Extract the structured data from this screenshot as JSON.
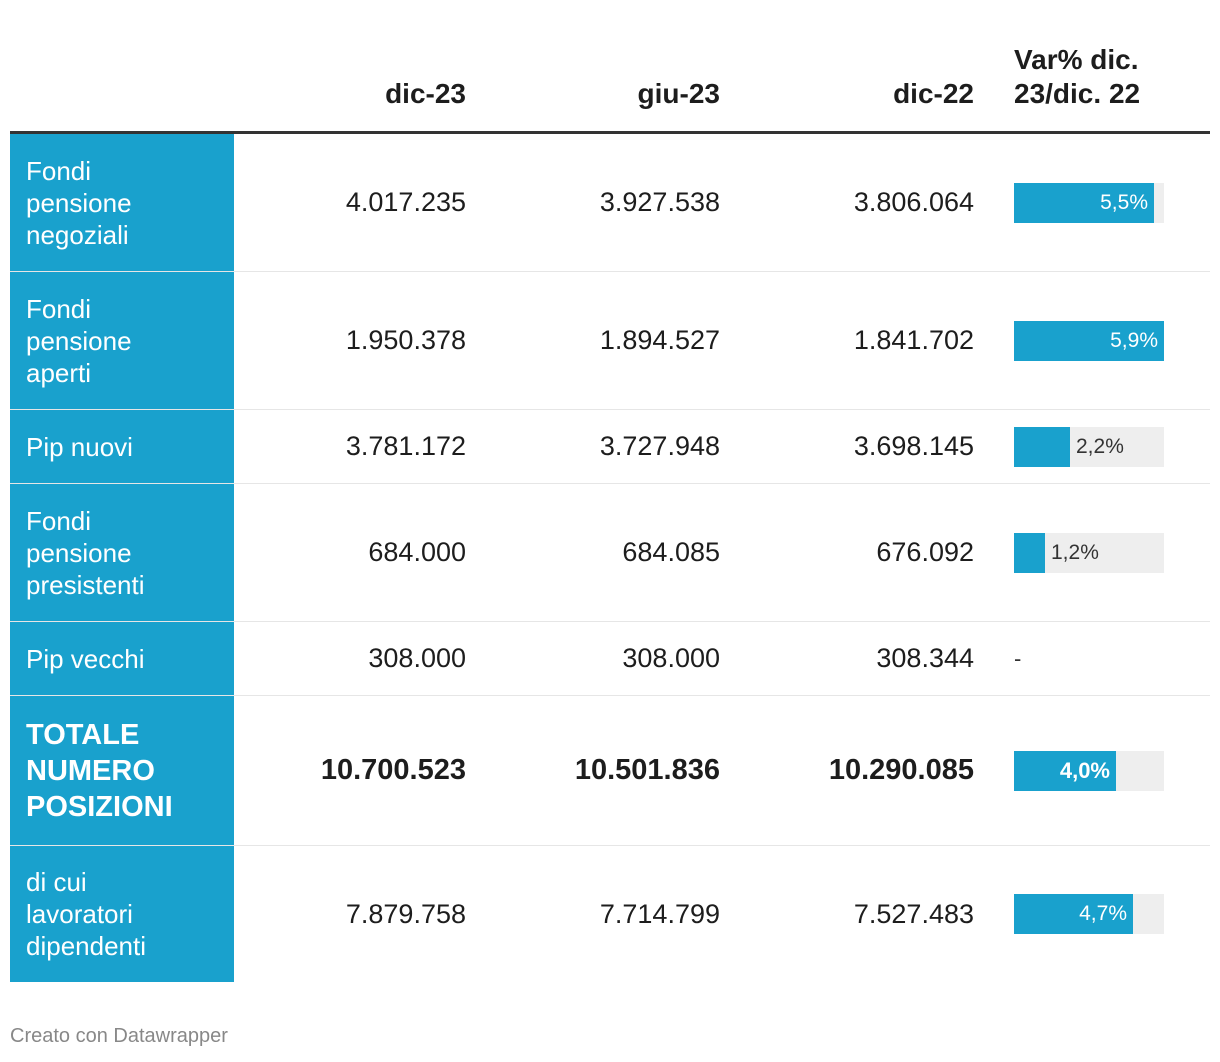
{
  "chart_data": {
    "type": "table",
    "columns": [
      "",
      "dic-23",
      "giu-23",
      "dic-22",
      "Var% dic. 23/dic. 22"
    ],
    "header_var_lines": [
      "Var% dic.",
      "23/dic. 22"
    ],
    "bar_max_percent": 5.9,
    "rows": [
      {
        "label": "Fondi pensione negoziali",
        "label_lines": [
          "Fondi",
          "pensione",
          "negoziali"
        ],
        "dic23": "4.017.235",
        "giu23": "3.927.538",
        "dic22": "3.806.064",
        "var_value": 5.5,
        "var_text": "5,5%",
        "bold": false
      },
      {
        "label": "Fondi pensione aperti",
        "label_lines": [
          "Fondi",
          "pensione",
          "aperti"
        ],
        "dic23": "1.950.378",
        "giu23": "1.894.527",
        "dic22": "1.841.702",
        "var_value": 5.9,
        "var_text": "5,9%",
        "bold": false
      },
      {
        "label": "Pip nuovi",
        "label_lines": [
          "Pip nuovi"
        ],
        "dic23": "3.781.172",
        "giu23": "3.727.948",
        "dic22": "3.698.145",
        "var_value": 2.2,
        "var_text": "2,2%",
        "bold": false
      },
      {
        "label": "Fondi pensione presistenti",
        "label_lines": [
          "Fondi",
          "pensione",
          "presistenti"
        ],
        "dic23": "684.000",
        "giu23": "684.085",
        "dic22": "676.092",
        "var_value": 1.2,
        "var_text": "1,2%",
        "bold": false
      },
      {
        "label": "Pip vecchi",
        "label_lines": [
          "Pip vecchi"
        ],
        "dic23": "308.000",
        "giu23": "308.000",
        "dic22": "308.344",
        "var_value": null,
        "var_text": "-",
        "bold": false
      },
      {
        "label": "TOTALE NUMERO POSIZIONI",
        "label_lines": [
          "TOTALE",
          "NUMERO",
          "POSIZIONI"
        ],
        "dic23": "10.700.523",
        "giu23": "10.501.836",
        "dic22": "10.290.085",
        "var_value": 4.0,
        "var_text": "4,0%",
        "bold": true
      },
      {
        "label": "di cui lavoratori dipendenti",
        "label_lines": [
          "di cui",
          "lavoratori",
          "dipendenti"
        ],
        "dic23": "7.879.758",
        "giu23": "7.714.799",
        "dic22": "7.527.483",
        "var_value": 4.7,
        "var_text": "4,7%",
        "bold": false
      }
    ]
  },
  "footer": {
    "credit": "Creato con Datawrapper"
  },
  "colors": {
    "accent": "#19a1cd",
    "bar_track": "#eeeeee",
    "header_rule": "#333333",
    "row_divider": "#e6e6e6",
    "footer_text": "#888888"
  }
}
